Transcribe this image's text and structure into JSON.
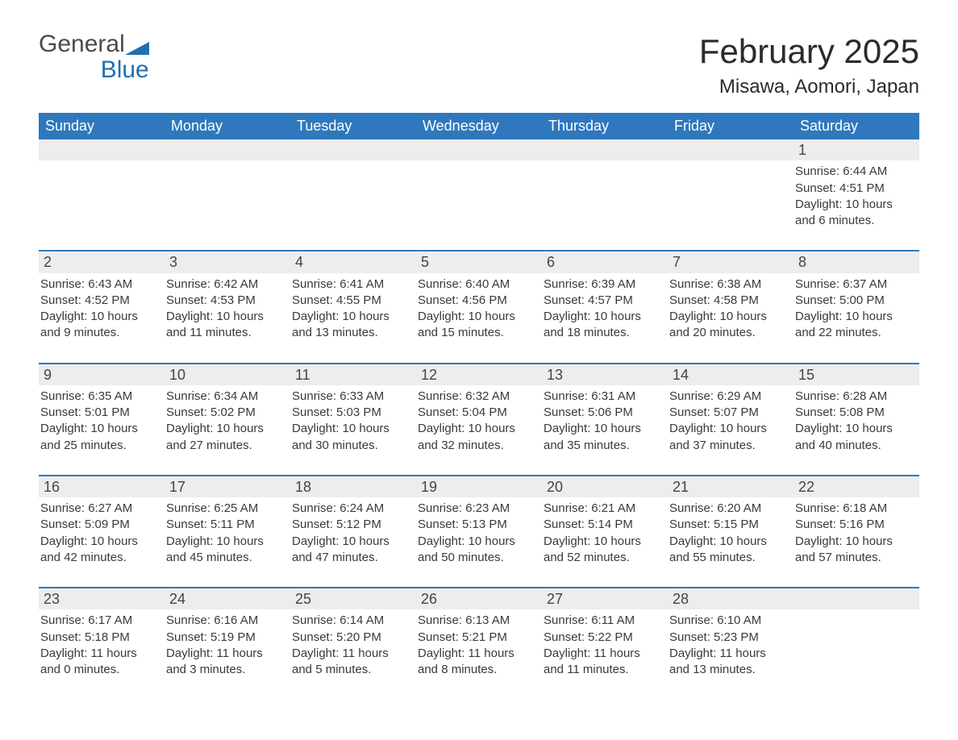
{
  "brand": {
    "word1": "General",
    "word2": "Blue",
    "accent_color": "#1f6fb2"
  },
  "title": "February 2025",
  "subtitle": "Misawa, Aomori, Japan",
  "colors": {
    "header_bg": "#2f78bd",
    "header_text": "#ffffff",
    "row_divider": "#2f78bd",
    "daynum_bg": "#ededed",
    "body_text": "#3a3a3a",
    "page_bg": "#ffffff"
  },
  "day_headers": [
    "Sunday",
    "Monday",
    "Tuesday",
    "Wednesday",
    "Thursday",
    "Friday",
    "Saturday"
  ],
  "weeks": [
    [
      {
        "day": "",
        "sunrise": "",
        "sunset": "",
        "daylight": ""
      },
      {
        "day": "",
        "sunrise": "",
        "sunset": "",
        "daylight": ""
      },
      {
        "day": "",
        "sunrise": "",
        "sunset": "",
        "daylight": ""
      },
      {
        "day": "",
        "sunrise": "",
        "sunset": "",
        "daylight": ""
      },
      {
        "day": "",
        "sunrise": "",
        "sunset": "",
        "daylight": ""
      },
      {
        "day": "",
        "sunrise": "",
        "sunset": "",
        "daylight": ""
      },
      {
        "day": "1",
        "sunrise": "Sunrise: 6:44 AM",
        "sunset": "Sunset: 4:51 PM",
        "daylight": "Daylight: 10 hours and 6 minutes."
      }
    ],
    [
      {
        "day": "2",
        "sunrise": "Sunrise: 6:43 AM",
        "sunset": "Sunset: 4:52 PM",
        "daylight": "Daylight: 10 hours and 9 minutes."
      },
      {
        "day": "3",
        "sunrise": "Sunrise: 6:42 AM",
        "sunset": "Sunset: 4:53 PM",
        "daylight": "Daylight: 10 hours and 11 minutes."
      },
      {
        "day": "4",
        "sunrise": "Sunrise: 6:41 AM",
        "sunset": "Sunset: 4:55 PM",
        "daylight": "Daylight: 10 hours and 13 minutes."
      },
      {
        "day": "5",
        "sunrise": "Sunrise: 6:40 AM",
        "sunset": "Sunset: 4:56 PM",
        "daylight": "Daylight: 10 hours and 15 minutes."
      },
      {
        "day": "6",
        "sunrise": "Sunrise: 6:39 AM",
        "sunset": "Sunset: 4:57 PM",
        "daylight": "Daylight: 10 hours and 18 minutes."
      },
      {
        "day": "7",
        "sunrise": "Sunrise: 6:38 AM",
        "sunset": "Sunset: 4:58 PM",
        "daylight": "Daylight: 10 hours and 20 minutes."
      },
      {
        "day": "8",
        "sunrise": "Sunrise: 6:37 AM",
        "sunset": "Sunset: 5:00 PM",
        "daylight": "Daylight: 10 hours and 22 minutes."
      }
    ],
    [
      {
        "day": "9",
        "sunrise": "Sunrise: 6:35 AM",
        "sunset": "Sunset: 5:01 PM",
        "daylight": "Daylight: 10 hours and 25 minutes."
      },
      {
        "day": "10",
        "sunrise": "Sunrise: 6:34 AM",
        "sunset": "Sunset: 5:02 PM",
        "daylight": "Daylight: 10 hours and 27 minutes."
      },
      {
        "day": "11",
        "sunrise": "Sunrise: 6:33 AM",
        "sunset": "Sunset: 5:03 PM",
        "daylight": "Daylight: 10 hours and 30 minutes."
      },
      {
        "day": "12",
        "sunrise": "Sunrise: 6:32 AM",
        "sunset": "Sunset: 5:04 PM",
        "daylight": "Daylight: 10 hours and 32 minutes."
      },
      {
        "day": "13",
        "sunrise": "Sunrise: 6:31 AM",
        "sunset": "Sunset: 5:06 PM",
        "daylight": "Daylight: 10 hours and 35 minutes."
      },
      {
        "day": "14",
        "sunrise": "Sunrise: 6:29 AM",
        "sunset": "Sunset: 5:07 PM",
        "daylight": "Daylight: 10 hours and 37 minutes."
      },
      {
        "day": "15",
        "sunrise": "Sunrise: 6:28 AM",
        "sunset": "Sunset: 5:08 PM",
        "daylight": "Daylight: 10 hours and 40 minutes."
      }
    ],
    [
      {
        "day": "16",
        "sunrise": "Sunrise: 6:27 AM",
        "sunset": "Sunset: 5:09 PM",
        "daylight": "Daylight: 10 hours and 42 minutes."
      },
      {
        "day": "17",
        "sunrise": "Sunrise: 6:25 AM",
        "sunset": "Sunset: 5:11 PM",
        "daylight": "Daylight: 10 hours and 45 minutes."
      },
      {
        "day": "18",
        "sunrise": "Sunrise: 6:24 AM",
        "sunset": "Sunset: 5:12 PM",
        "daylight": "Daylight: 10 hours and 47 minutes."
      },
      {
        "day": "19",
        "sunrise": "Sunrise: 6:23 AM",
        "sunset": "Sunset: 5:13 PM",
        "daylight": "Daylight: 10 hours and 50 minutes."
      },
      {
        "day": "20",
        "sunrise": "Sunrise: 6:21 AM",
        "sunset": "Sunset: 5:14 PM",
        "daylight": "Daylight: 10 hours and 52 minutes."
      },
      {
        "day": "21",
        "sunrise": "Sunrise: 6:20 AM",
        "sunset": "Sunset: 5:15 PM",
        "daylight": "Daylight: 10 hours and 55 minutes."
      },
      {
        "day": "22",
        "sunrise": "Sunrise: 6:18 AM",
        "sunset": "Sunset: 5:16 PM",
        "daylight": "Daylight: 10 hours and 57 minutes."
      }
    ],
    [
      {
        "day": "23",
        "sunrise": "Sunrise: 6:17 AM",
        "sunset": "Sunset: 5:18 PM",
        "daylight": "Daylight: 11 hours and 0 minutes."
      },
      {
        "day": "24",
        "sunrise": "Sunrise: 6:16 AM",
        "sunset": "Sunset: 5:19 PM",
        "daylight": "Daylight: 11 hours and 3 minutes."
      },
      {
        "day": "25",
        "sunrise": "Sunrise: 6:14 AM",
        "sunset": "Sunset: 5:20 PM",
        "daylight": "Daylight: 11 hours and 5 minutes."
      },
      {
        "day": "26",
        "sunrise": "Sunrise: 6:13 AM",
        "sunset": "Sunset: 5:21 PM",
        "daylight": "Daylight: 11 hours and 8 minutes."
      },
      {
        "day": "27",
        "sunrise": "Sunrise: 6:11 AM",
        "sunset": "Sunset: 5:22 PM",
        "daylight": "Daylight: 11 hours and 11 minutes."
      },
      {
        "day": "28",
        "sunrise": "Sunrise: 6:10 AM",
        "sunset": "Sunset: 5:23 PM",
        "daylight": "Daylight: 11 hours and 13 minutes."
      },
      {
        "day": "",
        "sunrise": "",
        "sunset": "",
        "daylight": ""
      }
    ]
  ]
}
